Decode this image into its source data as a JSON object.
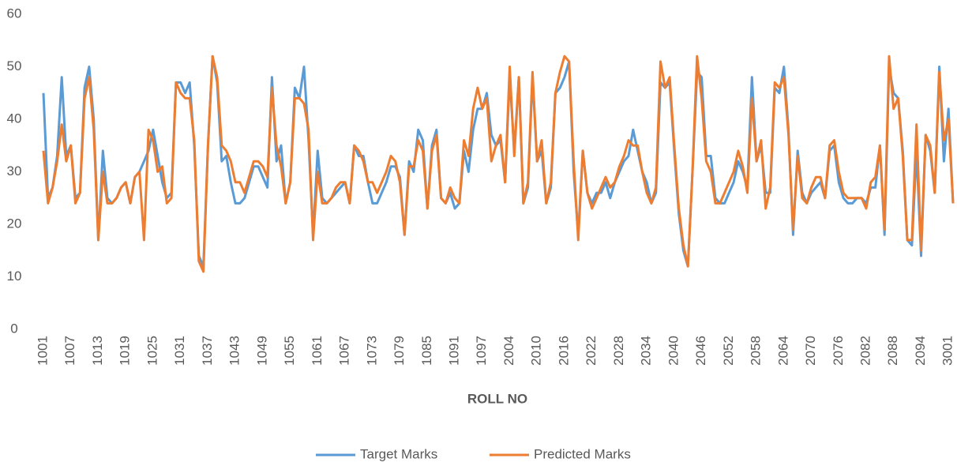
{
  "chart_data": {
    "type": "line",
    "x_label": "ROLL NO",
    "categories": [
      "1001",
      null,
      null,
      null,
      null,
      null,
      "1007",
      null,
      null,
      null,
      null,
      null,
      "1013",
      null,
      null,
      null,
      null,
      null,
      "1019",
      null,
      null,
      null,
      null,
      null,
      "1025",
      null,
      null,
      null,
      null,
      null,
      "1031",
      null,
      null,
      null,
      null,
      null,
      "1037",
      null,
      null,
      null,
      null,
      null,
      "1043",
      null,
      null,
      null,
      null,
      null,
      "1049",
      null,
      null,
      null,
      null,
      null,
      "1055",
      null,
      null,
      null,
      null,
      null,
      "1061",
      null,
      null,
      null,
      null,
      null,
      "1067",
      null,
      null,
      null,
      null,
      null,
      "1073",
      null,
      null,
      null,
      null,
      null,
      "1079",
      null,
      null,
      null,
      null,
      null,
      "1085",
      null,
      null,
      null,
      null,
      null,
      "1091",
      null,
      null,
      null,
      null,
      null,
      "1097",
      null,
      null,
      null,
      null,
      null,
      "2004",
      null,
      null,
      null,
      null,
      null,
      "2010",
      null,
      null,
      null,
      null,
      null,
      "2016",
      null,
      null,
      null,
      null,
      null,
      "2022",
      null,
      null,
      null,
      null,
      null,
      "2028",
      null,
      null,
      null,
      null,
      null,
      "2034",
      null,
      null,
      null,
      null,
      null,
      "2040",
      null,
      null,
      null,
      null,
      null,
      "2046",
      null,
      null,
      null,
      null,
      null,
      "2052",
      null,
      null,
      null,
      null,
      null,
      "2058",
      null,
      null,
      null,
      null,
      null,
      "2064",
      null,
      null,
      null,
      null,
      null,
      "2070",
      null,
      null,
      null,
      null,
      null,
      "2076",
      null,
      null,
      null,
      null,
      null,
      "2082",
      null,
      null,
      null,
      null,
      null,
      "2088",
      null,
      null,
      null,
      null,
      null,
      "2094",
      null,
      null,
      null,
      null,
      null,
      "3001",
      null
    ],
    "series": [
      {
        "name": "Target Marks",
        "color": "#5b9bd5",
        "values": [
          45,
          25,
          27,
          33,
          48,
          33,
          35,
          25,
          26,
          46,
          50,
          40,
          17,
          34,
          25,
          24,
          25,
          27,
          28,
          24,
          29,
          30,
          32,
          34,
          38,
          33,
          28,
          25,
          26,
          47,
          47,
          45,
          47,
          35,
          14,
          12,
          35,
          52,
          47,
          32,
          33,
          28,
          24,
          24,
          25,
          28,
          31,
          31,
          29,
          27,
          48,
          32,
          35,
          24,
          28,
          46,
          44,
          50,
          36,
          18,
          34,
          25,
          24,
          25,
          26,
          27,
          28,
          24,
          35,
          33,
          33,
          28,
          24,
          24,
          26,
          28,
          31,
          31,
          29,
          18,
          32,
          30,
          38,
          36,
          23,
          35,
          38,
          25,
          24,
          26,
          23,
          24,
          34,
          30,
          38,
          42,
          42,
          45,
          37,
          35,
          36,
          28,
          48,
          34,
          48,
          24,
          27,
          48,
          32,
          34,
          24,
          27,
          45,
          46,
          48,
          51,
          30,
          18,
          34,
          26,
          24,
          26,
          26,
          28,
          25,
          28,
          30,
          32,
          33,
          38,
          34,
          30,
          28,
          24,
          26,
          47,
          46,
          47,
          34,
          22,
          15,
          12,
          30,
          49,
          48,
          33,
          33,
          25,
          24,
          24,
          26,
          28,
          32,
          30,
          27,
          48,
          32,
          35,
          26,
          26,
          46,
          45,
          50,
          38,
          18,
          34,
          26,
          24,
          26,
          27,
          28,
          25,
          34,
          35,
          28,
          25,
          24,
          24,
          25,
          25,
          24,
          27,
          27,
          35,
          18,
          50,
          45,
          44,
          34,
          17,
          16,
          34,
          14,
          37,
          34,
          26,
          50,
          32,
          42,
          24
        ]
      },
      {
        "name": "Predicted Marks",
        "color": "#ed7d31",
        "values": [
          34,
          24,
          27,
          32,
          39,
          32,
          35,
          24,
          26,
          44,
          48,
          38,
          17,
          30,
          24,
          24,
          25,
          27,
          28,
          24,
          29,
          30,
          17,
          38,
          36,
          30,
          31,
          24,
          25,
          47,
          45,
          44,
          44,
          36,
          13,
          11,
          35,
          52,
          48,
          35,
          34,
          32,
          28,
          28,
          26,
          29,
          32,
          32,
          31,
          29,
          46,
          35,
          31,
          24,
          28,
          44,
          44,
          43,
          38,
          17,
          30,
          24,
          24,
          25,
          27,
          28,
          28,
          24,
          35,
          34,
          32,
          28,
          28,
          26,
          28,
          30,
          33,
          32,
          28,
          18,
          31,
          31,
          36,
          34,
          23,
          34,
          37,
          25,
          24,
          27,
          25,
          24,
          36,
          33,
          42,
          46,
          42,
          44,
          32,
          35,
          37,
          28,
          50,
          33,
          48,
          24,
          28,
          49,
          32,
          36,
          24,
          28,
          45,
          49,
          52,
          51,
          32,
          17,
          34,
          26,
          23,
          25,
          27,
          29,
          27,
          28,
          31,
          33,
          36,
          35,
          35,
          30,
          26,
          24,
          27,
          51,
          46,
          48,
          35,
          23,
          16,
          12,
          30,
          52,
          44,
          32,
          30,
          24,
          24,
          26,
          28,
          30,
          34,
          31,
          26,
          44,
          32,
          36,
          23,
          27,
          47,
          46,
          48,
          37,
          19,
          33,
          25,
          24,
          27,
          29,
          29,
          25,
          35,
          36,
          30,
          26,
          25,
          25,
          25,
          25,
          23,
          28,
          29,
          35,
          19,
          52,
          42,
          44,
          33,
          17,
          17,
          39,
          15,
          37,
          35,
          26,
          49,
          36,
          40,
          24
        ]
      }
    ],
    "ylim": [
      0,
      60
    ],
    "yticks": [
      0,
      10,
      20,
      30,
      40,
      50,
      60
    ],
    "legend": "bottom"
  }
}
